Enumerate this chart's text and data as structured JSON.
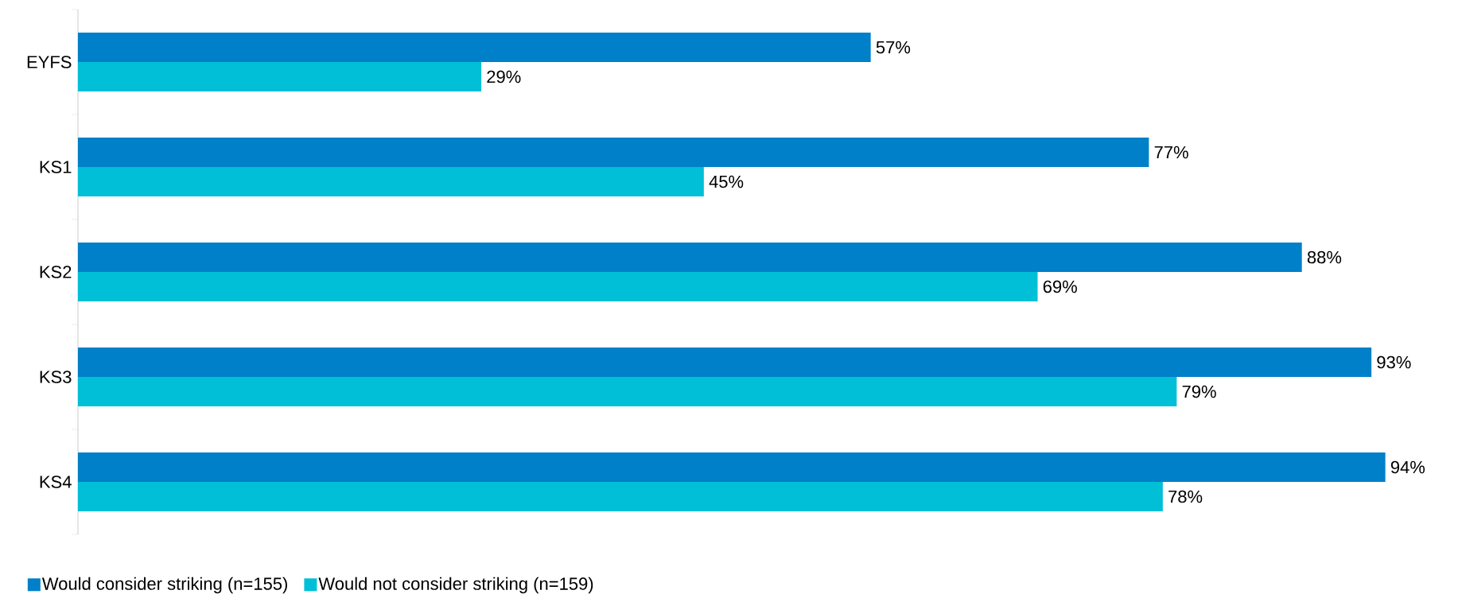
{
  "chart_data": {
    "type": "bar",
    "orientation": "horizontal",
    "categories": [
      "EYFS",
      "KS1",
      "KS2",
      "KS3",
      "KS4"
    ],
    "series": [
      {
        "name": "Would consider striking (n=155)",
        "color": "#0080c8",
        "values": [
          57,
          77,
          88,
          93,
          94
        ],
        "value_labels": [
          "57%",
          "77%",
          "88%",
          "93%",
          "94%"
        ]
      },
      {
        "name": "Would not consider striking (n=159)",
        "color": "#00bfd6",
        "values": [
          29,
          45,
          69,
          79,
          78
        ],
        "value_labels": [
          "29%",
          "45%",
          "69%",
          "79%",
          "78%"
        ]
      }
    ],
    "legend": "bottom left"
  }
}
